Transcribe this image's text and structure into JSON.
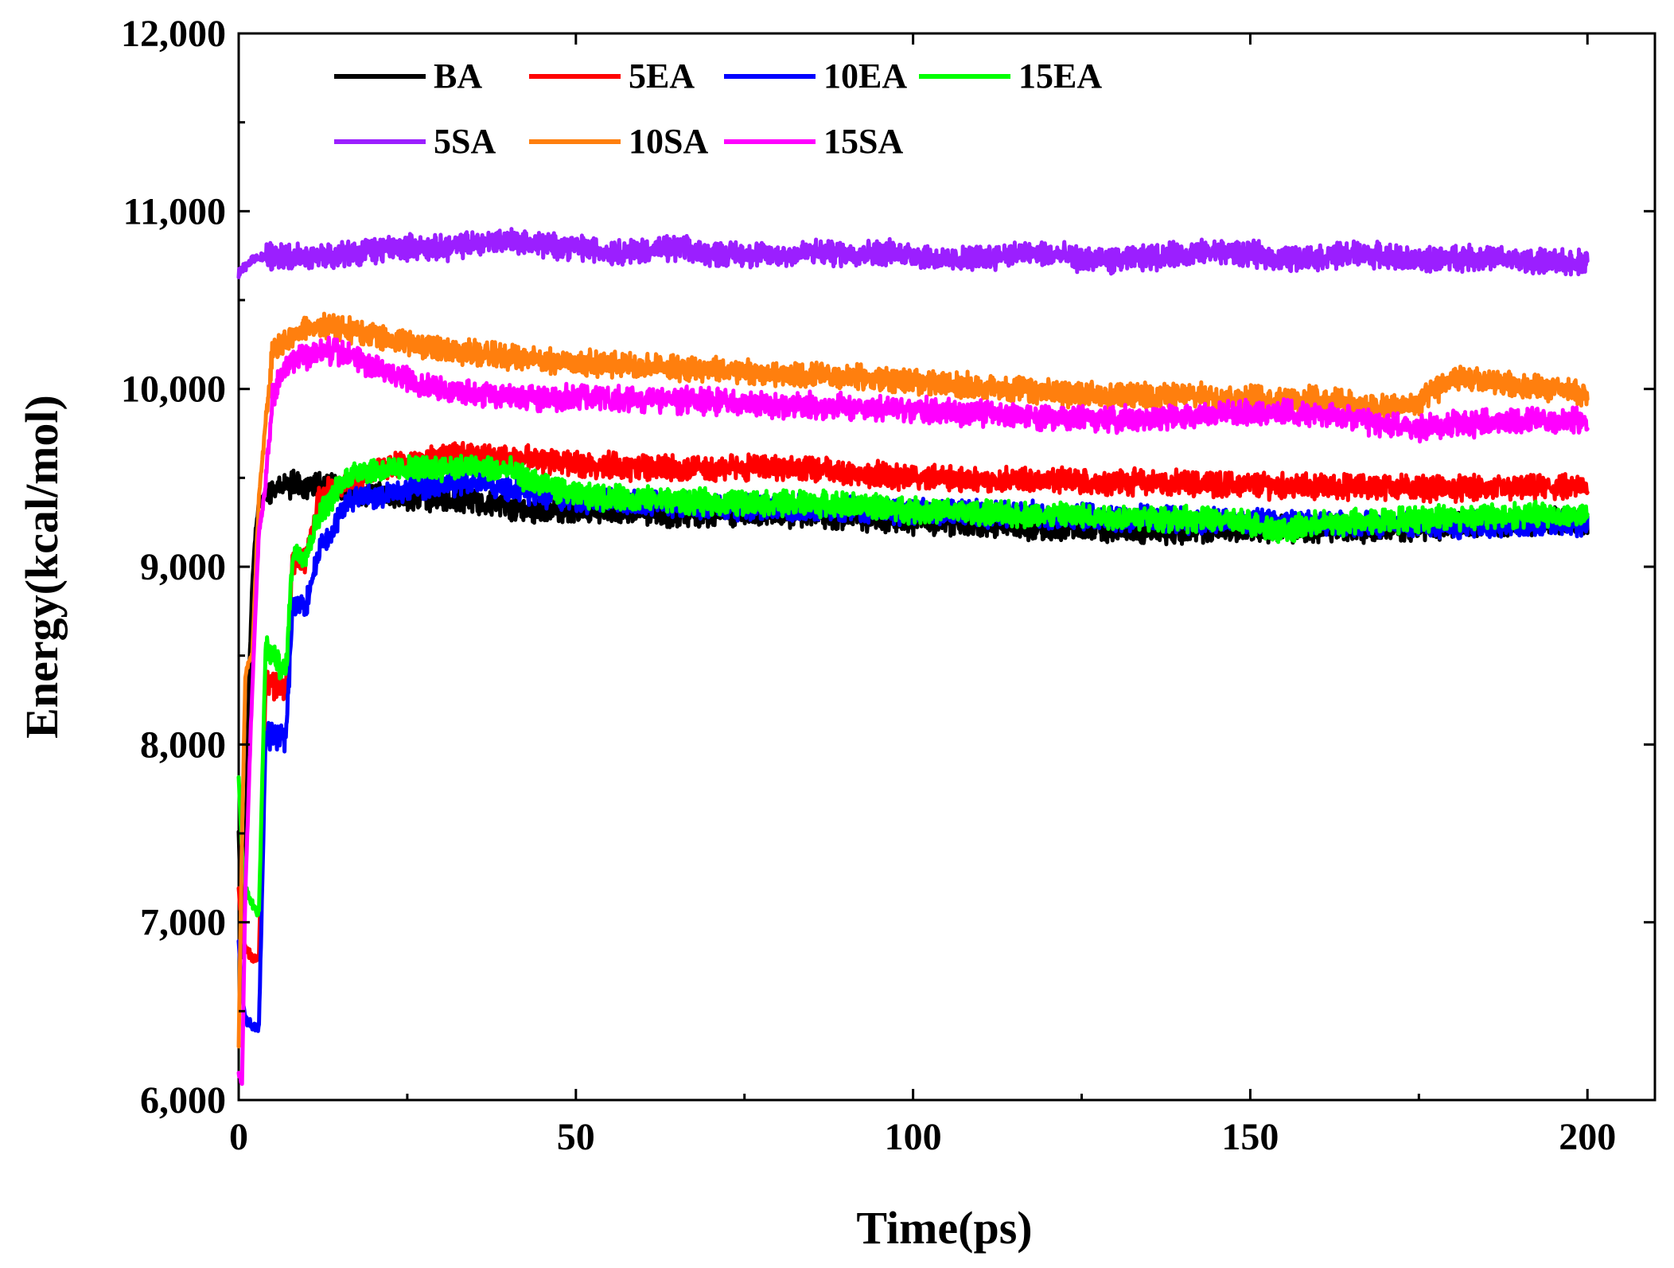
{
  "chart_data": {
    "type": "line",
    "title": "",
    "xlabel": "Time(ps)",
    "ylabel": "Energy(kcal/mol)",
    "xlim": [
      0,
      210
    ],
    "ylim": [
      6000,
      12000
    ],
    "x_ticks": [
      0,
      50,
      100,
      150,
      200
    ],
    "x_tick_labels": [
      "0",
      "50",
      "100",
      "150",
      "200"
    ],
    "y_ticks": [
      6000,
      7000,
      8000,
      9000,
      10000,
      11000,
      12000
    ],
    "y_tick_labels": [
      "6,000",
      "7,000",
      "8,000",
      "9,000",
      "10,000",
      "11,000",
      "12,000"
    ],
    "grid": false,
    "legend_position": "top-left",
    "series": [
      {
        "name": "BA",
        "color": "#000000",
        "points": [
          [
            0,
            7500
          ],
          [
            0.5,
            6800
          ],
          [
            1,
            7300
          ],
          [
            1.5,
            8300
          ],
          [
            2,
            8900
          ],
          [
            2.5,
            9200
          ],
          [
            3,
            9350
          ],
          [
            4,
            9420
          ],
          [
            6,
            9450
          ],
          [
            8,
            9460
          ],
          [
            10,
            9450
          ],
          [
            12,
            9460
          ],
          [
            15,
            9440
          ],
          [
            18,
            9410
          ],
          [
            20,
            9400
          ],
          [
            25,
            9390
          ],
          [
            30,
            9380
          ],
          [
            35,
            9380
          ],
          [
            40,
            9340
          ],
          [
            45,
            9310
          ],
          [
            50,
            9320
          ],
          [
            60,
            9300
          ],
          [
            70,
            9300
          ],
          [
            80,
            9300
          ],
          [
            90,
            9280
          ],
          [
            100,
            9260
          ],
          [
            110,
            9240
          ],
          [
            120,
            9220
          ],
          [
            130,
            9210
          ],
          [
            140,
            9200
          ],
          [
            150,
            9210
          ],
          [
            160,
            9210
          ],
          [
            170,
            9210
          ],
          [
            180,
            9230
          ],
          [
            190,
            9250
          ],
          [
            200,
            9260
          ]
        ]
      },
      {
        "name": "5EA",
        "color": "#ff0000",
        "points": [
          [
            0,
            7200
          ],
          [
            0.5,
            6950
          ],
          [
            1,
            6850
          ],
          [
            2,
            6800
          ],
          [
            3,
            6800
          ],
          [
            4,
            8350
          ],
          [
            5,
            8330
          ],
          [
            6,
            8320
          ],
          [
            7,
            8320
          ],
          [
            8,
            9030
          ],
          [
            10,
            9050
          ],
          [
            12,
            9400
          ],
          [
            15,
            9460
          ],
          [
            18,
            9500
          ],
          [
            20,
            9540
          ],
          [
            25,
            9590
          ],
          [
            30,
            9620
          ],
          [
            35,
            9640
          ],
          [
            40,
            9610
          ],
          [
            45,
            9600
          ],
          [
            50,
            9580
          ],
          [
            60,
            9560
          ],
          [
            70,
            9550
          ],
          [
            80,
            9560
          ],
          [
            90,
            9530
          ],
          [
            100,
            9500
          ],
          [
            110,
            9490
          ],
          [
            120,
            9480
          ],
          [
            130,
            9480
          ],
          [
            140,
            9470
          ],
          [
            150,
            9460
          ],
          [
            160,
            9450
          ],
          [
            170,
            9450
          ],
          [
            180,
            9440
          ],
          [
            190,
            9440
          ],
          [
            200,
            9450
          ]
        ]
      },
      {
        "name": "10EA",
        "color": "#0000ff",
        "points": [
          [
            0,
            6900
          ],
          [
            0.5,
            6600
          ],
          [
            1,
            6450
          ],
          [
            2,
            6420
          ],
          [
            3,
            6400
          ],
          [
            4,
            8050
          ],
          [
            5,
            8050
          ],
          [
            6,
            8040
          ],
          [
            7,
            8030
          ],
          [
            8,
            8790
          ],
          [
            10,
            8780
          ],
          [
            12,
            9100
          ],
          [
            14,
            9200
          ],
          [
            16,
            9380
          ],
          [
            18,
            9390
          ],
          [
            20,
            9400
          ],
          [
            25,
            9430
          ],
          [
            30,
            9470
          ],
          [
            35,
            9480
          ],
          [
            40,
            9440
          ],
          [
            45,
            9400
          ],
          [
            50,
            9380
          ],
          [
            60,
            9360
          ],
          [
            70,
            9340
          ],
          [
            80,
            9330
          ],
          [
            90,
            9320
          ],
          [
            100,
            9310
          ],
          [
            110,
            9300
          ],
          [
            120,
            9290
          ],
          [
            130,
            9280
          ],
          [
            140,
            9260
          ],
          [
            150,
            9250
          ],
          [
            160,
            9240
          ],
          [
            170,
            9240
          ],
          [
            180,
            9240
          ],
          [
            190,
            9240
          ],
          [
            200,
            9240
          ]
        ]
      },
      {
        "name": "15EA",
        "color": "#00ff00",
        "points": [
          [
            0,
            7800
          ],
          [
            0.5,
            7400
          ],
          [
            1,
            7200
          ],
          [
            2,
            7100
          ],
          [
            3,
            7050
          ],
          [
            4,
            8550
          ],
          [
            5,
            8500
          ],
          [
            6,
            8450
          ],
          [
            7,
            8400
          ],
          [
            8,
            9080
          ],
          [
            10,
            9070
          ],
          [
            12,
            9300
          ],
          [
            14,
            9400
          ],
          [
            16,
            9500
          ],
          [
            18,
            9550
          ],
          [
            20,
            9540
          ],
          [
            25,
            9550
          ],
          [
            30,
            9560
          ],
          [
            35,
            9560
          ],
          [
            40,
            9540
          ],
          [
            45,
            9460
          ],
          [
            50,
            9400
          ],
          [
            60,
            9380
          ],
          [
            70,
            9360
          ],
          [
            80,
            9360
          ],
          [
            90,
            9350
          ],
          [
            100,
            9320
          ],
          [
            110,
            9300
          ],
          [
            120,
            9290
          ],
          [
            130,
            9280
          ],
          [
            140,
            9270
          ],
          [
            150,
            9250
          ],
          [
            155,
            9200
          ],
          [
            160,
            9240
          ],
          [
            170,
            9260
          ],
          [
            180,
            9280
          ],
          [
            190,
            9290
          ],
          [
            200,
            9290
          ]
        ]
      },
      {
        "name": "5SA",
        "color": "#9b1fff",
        "points": [
          [
            0,
            10650
          ],
          [
            2,
            10730
          ],
          [
            5,
            10750
          ],
          [
            10,
            10740
          ],
          [
            15,
            10750
          ],
          [
            20,
            10780
          ],
          [
            25,
            10800
          ],
          [
            30,
            10790
          ],
          [
            35,
            10820
          ],
          [
            40,
            10840
          ],
          [
            45,
            10810
          ],
          [
            50,
            10800
          ],
          [
            55,
            10770
          ],
          [
            60,
            10780
          ],
          [
            65,
            10790
          ],
          [
            70,
            10760
          ],
          [
            75,
            10760
          ],
          [
            80,
            10750
          ],
          [
            85,
            10770
          ],
          [
            90,
            10760
          ],
          [
            95,
            10770
          ],
          [
            100,
            10760
          ],
          [
            105,
            10720
          ],
          [
            110,
            10740
          ],
          [
            115,
            10760
          ],
          [
            120,
            10760
          ],
          [
            125,
            10730
          ],
          [
            130,
            10720
          ],
          [
            135,
            10740
          ],
          [
            140,
            10760
          ],
          [
            145,
            10770
          ],
          [
            150,
            10760
          ],
          [
            155,
            10730
          ],
          [
            160,
            10740
          ],
          [
            165,
            10760
          ],
          [
            170,
            10750
          ],
          [
            175,
            10720
          ],
          [
            180,
            10740
          ],
          [
            185,
            10740
          ],
          [
            190,
            10720
          ],
          [
            195,
            10710
          ],
          [
            200,
            10720
          ]
        ]
      },
      {
        "name": "10SA",
        "color": "#ff7f0e",
        "points": [
          [
            0,
            6300
          ],
          [
            0.5,
            7500
          ],
          [
            1,
            8400
          ],
          [
            2,
            8500
          ],
          [
            3,
            9400
          ],
          [
            4,
            9800
          ],
          [
            5,
            10200
          ],
          [
            6,
            10250
          ],
          [
            8,
            10300
          ],
          [
            10,
            10340
          ],
          [
            12,
            10360
          ],
          [
            15,
            10340
          ],
          [
            18,
            10320
          ],
          [
            20,
            10300
          ],
          [
            25,
            10260
          ],
          [
            30,
            10220
          ],
          [
            35,
            10200
          ],
          [
            40,
            10180
          ],
          [
            45,
            10160
          ],
          [
            50,
            10150
          ],
          [
            60,
            10130
          ],
          [
            70,
            10110
          ],
          [
            80,
            10080
          ],
          [
            90,
            10070
          ],
          [
            100,
            10040
          ],
          [
            110,
            10010
          ],
          [
            120,
            9980
          ],
          [
            130,
            9960
          ],
          [
            140,
            9960
          ],
          [
            150,
            9950
          ],
          [
            160,
            9940
          ],
          [
            170,
            9890
          ],
          [
            175,
            9920
          ],
          [
            180,
            10060
          ],
          [
            185,
            10040
          ],
          [
            190,
            10020
          ],
          [
            195,
            10000
          ],
          [
            200,
            9970
          ]
        ]
      },
      {
        "name": "15SA",
        "color": "#ff00ff",
        "points": [
          [
            0,
            6150
          ],
          [
            0.5,
            6100
          ],
          [
            1,
            7200
          ],
          [
            2,
            8300
          ],
          [
            3,
            9200
          ],
          [
            4,
            9450
          ],
          [
            5,
            9950
          ],
          [
            6,
            10050
          ],
          [
            8,
            10150
          ],
          [
            10,
            10180
          ],
          [
            12,
            10220
          ],
          [
            15,
            10200
          ],
          [
            18,
            10160
          ],
          [
            20,
            10120
          ],
          [
            25,
            10060
          ],
          [
            30,
            10000
          ],
          [
            35,
            9980
          ],
          [
            40,
            9960
          ],
          [
            45,
            9950
          ],
          [
            50,
            9950
          ],
          [
            60,
            9940
          ],
          [
            70,
            9930
          ],
          [
            80,
            9910
          ],
          [
            90,
            9900
          ],
          [
            100,
            9880
          ],
          [
            110,
            9860
          ],
          [
            120,
            9840
          ],
          [
            130,
            9830
          ],
          [
            140,
            9850
          ],
          [
            150,
            9870
          ],
          [
            160,
            9860
          ],
          [
            170,
            9800
          ],
          [
            175,
            9780
          ],
          [
            180,
            9800
          ],
          [
            190,
            9820
          ],
          [
            200,
            9820
          ]
        ]
      }
    ]
  }
}
